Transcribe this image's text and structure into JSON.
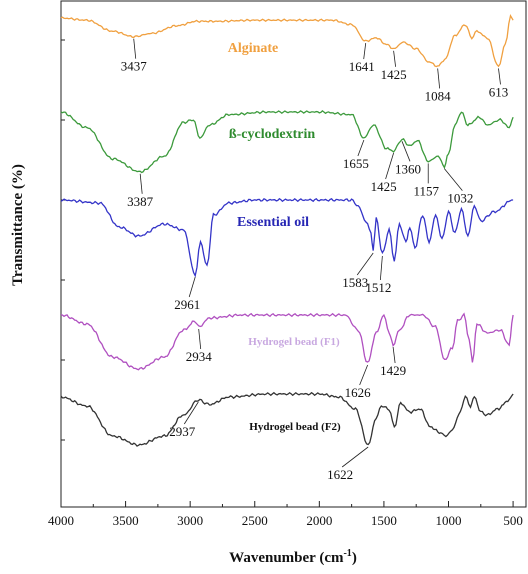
{
  "chart_data": {
    "type": "line",
    "xlabel": "Wavenumber (cm",
    "xlabel_sup": "-1",
    "xlabel_close": ")",
    "ylabel": "Transmittance (%)",
    "xlim": [
      4000,
      400
    ],
    "x_reversed": true,
    "xticks": [
      4000,
      3500,
      3000,
      2500,
      2000,
      1500,
      1000,
      500
    ],
    "grid": false,
    "series": [
      {
        "name": "Alginate",
        "color": "#F0A040",
        "label_color": "#F0A040",
        "points": [
          [
            4000,
            0.0
          ],
          [
            3800,
            1.0
          ],
          [
            3600,
            6.0
          ],
          [
            3437,
            8.5
          ],
          [
            3300,
            7.0
          ],
          [
            3100,
            3.5
          ],
          [
            2950,
            1.5
          ],
          [
            2800,
            1.5
          ],
          [
            2500,
            1.0
          ],
          [
            2200,
            1.0
          ],
          [
            1900,
            1.0
          ],
          [
            1750,
            3.0
          ],
          [
            1641,
            10.5
          ],
          [
            1560,
            9.0
          ],
          [
            1480,
            12.0
          ],
          [
            1425,
            14.0
          ],
          [
            1350,
            11.0
          ],
          [
            1250,
            14.0
          ],
          [
            1150,
            20.0
          ],
          [
            1084,
            22.0
          ],
          [
            1030,
            19.0
          ],
          [
            950,
            8.0
          ],
          [
            870,
            3.0
          ],
          [
            820,
            9.0
          ],
          [
            780,
            6.0
          ],
          [
            700,
            9.0
          ],
          [
            613,
            22.0
          ],
          [
            560,
            12.0
          ],
          [
            520,
            -1.0
          ],
          [
            500,
            1.0
          ]
        ],
        "peaks": [
          3437,
          1641,
          1425,
          1084,
          613
        ]
      },
      {
        "name": "ß-cyclodextrin",
        "color": "#3C9A3C",
        "label_color": "#2E8B2E",
        "points": [
          [
            4000,
            0.0
          ],
          [
            3800,
            6.0
          ],
          [
            3600,
            18.0
          ],
          [
            3387,
            23.0
          ],
          [
            3200,
            17.0
          ],
          [
            3050,
            4.0
          ],
          [
            2975,
            3.0
          ],
          [
            2925,
            10.0
          ],
          [
            2850,
            5.0
          ],
          [
            2700,
            1.0
          ],
          [
            2400,
            0.0
          ],
          [
            2000,
            0.0
          ],
          [
            1750,
            1.0
          ],
          [
            1655,
            10.0
          ],
          [
            1580,
            5.0
          ],
          [
            1480,
            14.0
          ],
          [
            1425,
            15.0
          ],
          [
            1360,
            10.5
          ],
          [
            1300,
            13.0
          ],
          [
            1240,
            11.0
          ],
          [
            1157,
            19.0
          ],
          [
            1080,
            17.0
          ],
          [
            1032,
            21.0
          ],
          [
            1000,
            16.0
          ],
          [
            950,
            5.0
          ],
          [
            900,
            0.0
          ],
          [
            850,
            5.0
          ],
          [
            760,
            2.0
          ],
          [
            700,
            5.0
          ],
          [
            600,
            3.0
          ],
          [
            530,
            6.0
          ],
          [
            500,
            2.0
          ]
        ],
        "peaks": [
          3387,
          1655,
          1425,
          1360,
          1157,
          1032
        ]
      },
      {
        "name": "Essential oil",
        "color": "#3434C8",
        "label_color": "#2626B4",
        "points": [
          [
            4000,
            0.0
          ],
          [
            3700,
            1.0
          ],
          [
            3550,
            9.0
          ],
          [
            3400,
            12.0
          ],
          [
            3200,
            8.0
          ],
          [
            3050,
            10.0
          ],
          [
            2961,
            25.0
          ],
          [
            2920,
            14.0
          ],
          [
            2870,
            22.0
          ],
          [
            2820,
            5.0
          ],
          [
            2700,
            1.0
          ],
          [
            2500,
            0.0
          ],
          [
            2000,
            0.0
          ],
          [
            1750,
            0.0
          ],
          [
            1700,
            2.0
          ],
          [
            1640,
            7.0
          ],
          [
            1600,
            11.0
          ],
          [
            1583,
            17.0
          ],
          [
            1560,
            6.0
          ],
          [
            1512,
            18.0
          ],
          [
            1460,
            10.0
          ],
          [
            1420,
            20.0
          ],
          [
            1380,
            8.0
          ],
          [
            1330,
            14.0
          ],
          [
            1300,
            9.0
          ],
          [
            1260,
            16.0
          ],
          [
            1200,
            5.0
          ],
          [
            1150,
            14.0
          ],
          [
            1100,
            5.0
          ],
          [
            1050,
            13.0
          ],
          [
            1000,
            4.0
          ],
          [
            950,
            11.0
          ],
          [
            900,
            3.0
          ],
          [
            850,
            12.0
          ],
          [
            800,
            2.0
          ],
          [
            750,
            7.0
          ],
          [
            650,
            4.0
          ],
          [
            500,
            0.0
          ]
        ],
        "peaks": [
          2961,
          1583,
          1512
        ]
      },
      {
        "name": "Hydrogel bead (F1)",
        "color": "#B050C0",
        "label_color": "#C8A8E0",
        "points": [
          [
            4000,
            0.0
          ],
          [
            3800,
            3.0
          ],
          [
            3600,
            14.0
          ],
          [
            3400,
            18.0
          ],
          [
            3200,
            14.0
          ],
          [
            3050,
            5.0
          ],
          [
            2960,
            2.0
          ],
          [
            2934,
            4.0
          ],
          [
            2850,
            1.0
          ],
          [
            2600,
            0.0
          ],
          [
            2200,
            0.0
          ],
          [
            1800,
            0.0
          ],
          [
            1700,
            5.0
          ],
          [
            1626,
            16.0
          ],
          [
            1560,
            6.0
          ],
          [
            1500,
            0.0
          ],
          [
            1460,
            6.0
          ],
          [
            1429,
            10.0
          ],
          [
            1380,
            5.0
          ],
          [
            1300,
            0.0
          ],
          [
            1200,
            0.0
          ],
          [
            1100,
            4.0
          ],
          [
            1030,
            15.0
          ],
          [
            970,
            11.0
          ],
          [
            930,
            2.0
          ],
          [
            880,
            0.0
          ],
          [
            840,
            8.0
          ],
          [
            815,
            16.0
          ],
          [
            780,
            3.0
          ],
          [
            700,
            6.0
          ],
          [
            600,
            5.0
          ],
          [
            530,
            10.0
          ],
          [
            500,
            0.0
          ]
        ],
        "peaks": [
          2934,
          1626,
          1429
        ]
      },
      {
        "name": "Hydrogel bead (F2)",
        "color": "#333333",
        "label_color": "#111111",
        "points": [
          [
            4000,
            0.0
          ],
          [
            3800,
            3.0
          ],
          [
            3600,
            13.0
          ],
          [
            3400,
            16.0
          ],
          [
            3200,
            13.0
          ],
          [
            3050,
            6.0
          ],
          [
            2937,
            1.0
          ],
          [
            2850,
            2.5
          ],
          [
            2700,
            0.0
          ],
          [
            2400,
            -1.0
          ],
          [
            2000,
            -1.0
          ],
          [
            1850,
            0.0
          ],
          [
            1720,
            4.0
          ],
          [
            1622,
            16.0
          ],
          [
            1560,
            7.0
          ],
          [
            1520,
            3.0
          ],
          [
            1460,
            4.0
          ],
          [
            1420,
            10.0
          ],
          [
            1370,
            2.0
          ],
          [
            1300,
            5.0
          ],
          [
            1220,
            4.0
          ],
          [
            1140,
            10.0
          ],
          [
            1060,
            12.0
          ],
          [
            1020,
            13.0
          ],
          [
            970,
            11.0
          ],
          [
            920,
            6.0
          ],
          [
            870,
            0.0
          ],
          [
            830,
            3.0
          ],
          [
            800,
            0.0
          ],
          [
            750,
            5.0
          ],
          [
            700,
            6.0
          ],
          [
            620,
            4.0
          ],
          [
            530,
            1.0
          ],
          [
            500,
            -1.0
          ]
        ],
        "peaks": [
          2937,
          1622
        ]
      }
    ]
  }
}
